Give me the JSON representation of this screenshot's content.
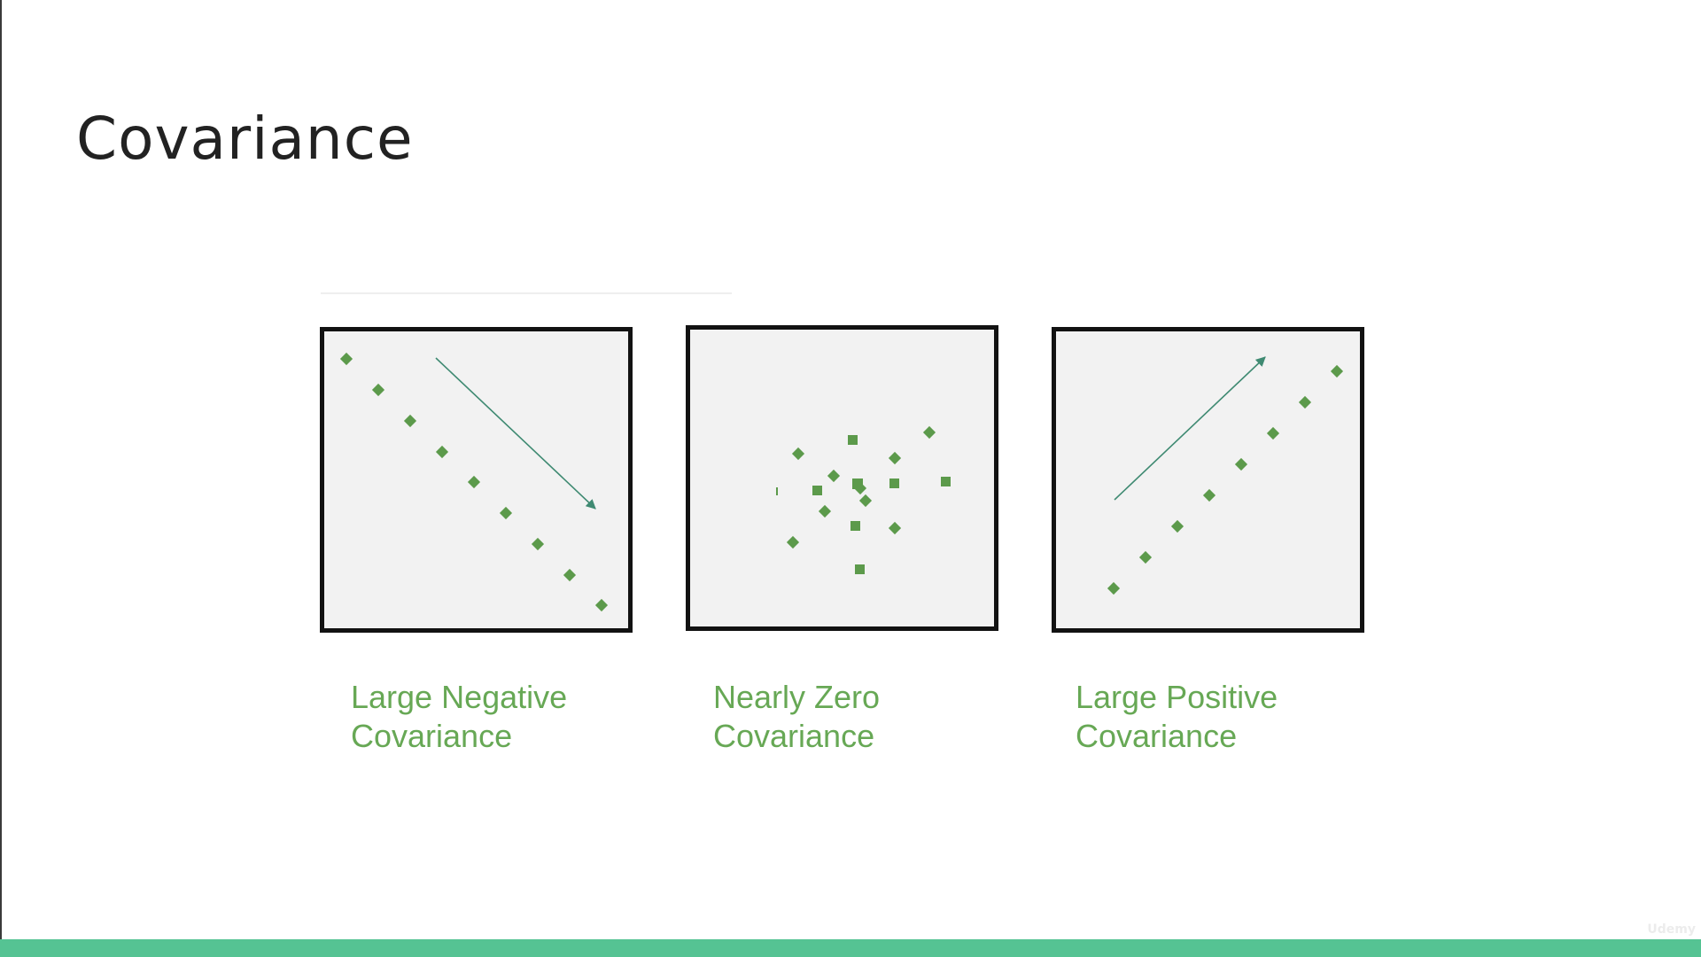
{
  "slide": {
    "title": "Covariance",
    "logo_text": "Udemy"
  },
  "colors": {
    "marker": "#5c9a4b",
    "arrow": "#3f8a72",
    "caption": "#67a855",
    "bottom_bar": "#55c393",
    "panel_bg": "#f2f2f2",
    "panel_border": "#121212"
  },
  "panels": [
    {
      "key": "neg",
      "caption_line1": "Large Negative",
      "caption_line2": "Covariance",
      "arrow": "down-right"
    },
    {
      "key": "zero",
      "caption_line1": "Nearly Zero",
      "caption_line2": "Covariance",
      "arrow": "none"
    },
    {
      "key": "pos",
      "caption_line1": "Large Positive",
      "caption_line2": "Covariance",
      "arrow": "up-right"
    }
  ]
}
